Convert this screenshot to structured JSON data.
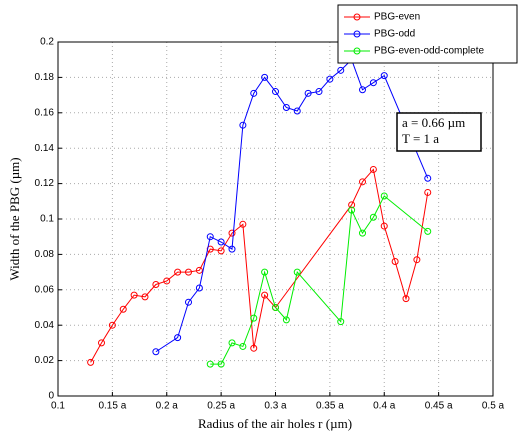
{
  "chart_data": {
    "type": "line",
    "xlabel": "Radius of the air holes r (µm)",
    "ylabel": "Width of the PBG (µm)",
    "annotations": [
      "a = 0.66 µm",
      "T = 1 a"
    ],
    "xlim": [
      0.1,
      0.5
    ],
    "xticks": [
      0.1,
      {
        "value": 0.15,
        "label": "0.15 a"
      },
      {
        "value": 0.2,
        "label": "0.2 a"
      },
      {
        "value": 0.25,
        "label": "0.25 a"
      },
      {
        "value": 0.3,
        "label": "0.3 a"
      },
      {
        "value": 0.35,
        "label": "0.35 a"
      },
      {
        "value": 0.4,
        "label": "0.4 a"
      },
      {
        "value": 0.45,
        "label": "0.45 a"
      },
      {
        "value": 0.5,
        "label": "0.5 a"
      }
    ],
    "ylim": [
      0,
      0.2
    ],
    "yticks": [
      0,
      0.02,
      0.04,
      0.06,
      0.08,
      0.1,
      0.12,
      0.14,
      0.16,
      0.18,
      0.2
    ],
    "grid": true,
    "legend": "upper right",
    "series": [
      {
        "name": "PBG-even",
        "color": "#ff0000",
        "x": [
          0.13,
          0.14,
          0.15,
          0.16,
          0.17,
          0.18,
          0.19,
          0.2,
          0.21,
          0.22,
          0.23,
          0.24,
          0.25,
          0.26,
          0.27,
          0.28,
          0.29,
          0.3,
          0.37,
          0.38,
          0.39,
          0.4,
          0.41,
          0.42,
          0.43,
          0.44
        ],
        "values": [
          0.019,
          0.03,
          0.04,
          0.049,
          0.057,
          0.056,
          0.063,
          0.065,
          0.07,
          0.07,
          0.071,
          0.083,
          0.082,
          0.092,
          0.097,
          0.027,
          0.057,
          0.05,
          0.108,
          0.121,
          0.128,
          0.096,
          0.076,
          0.055,
          0.077,
          0.115
        ]
      },
      {
        "name": "PBG-odd",
        "color": "#0000ff",
        "x": [
          0.19,
          0.21,
          0.22,
          0.23,
          0.24,
          0.25,
          0.26,
          0.27,
          0.28,
          0.29,
          0.3,
          0.31,
          0.32,
          0.33,
          0.34,
          0.35,
          0.36,
          0.37,
          0.38,
          0.39,
          0.4,
          0.44
        ],
        "values": [
          0.025,
          0.033,
          0.053,
          0.061,
          0.09,
          0.087,
          0.083,
          0.153,
          0.171,
          0.18,
          0.172,
          0.163,
          0.161,
          0.171,
          0.172,
          0.179,
          0.184,
          0.19,
          0.173,
          0.177,
          0.181,
          0.123
        ]
      },
      {
        "name": "PBG-even-odd-complete",
        "color": "#00ee00",
        "x": [
          0.24,
          0.25,
          0.26,
          0.27,
          0.28,
          0.29,
          0.3,
          0.31,
          0.32,
          0.36,
          0.37,
          0.38,
          0.39,
          0.4,
          0.44
        ],
        "values": [
          0.018,
          0.018,
          0.03,
          0.028,
          0.044,
          0.07,
          0.05,
          0.043,
          0.07,
          0.042,
          0.105,
          0.092,
          0.101,
          0.113,
          0.093
        ]
      }
    ]
  }
}
